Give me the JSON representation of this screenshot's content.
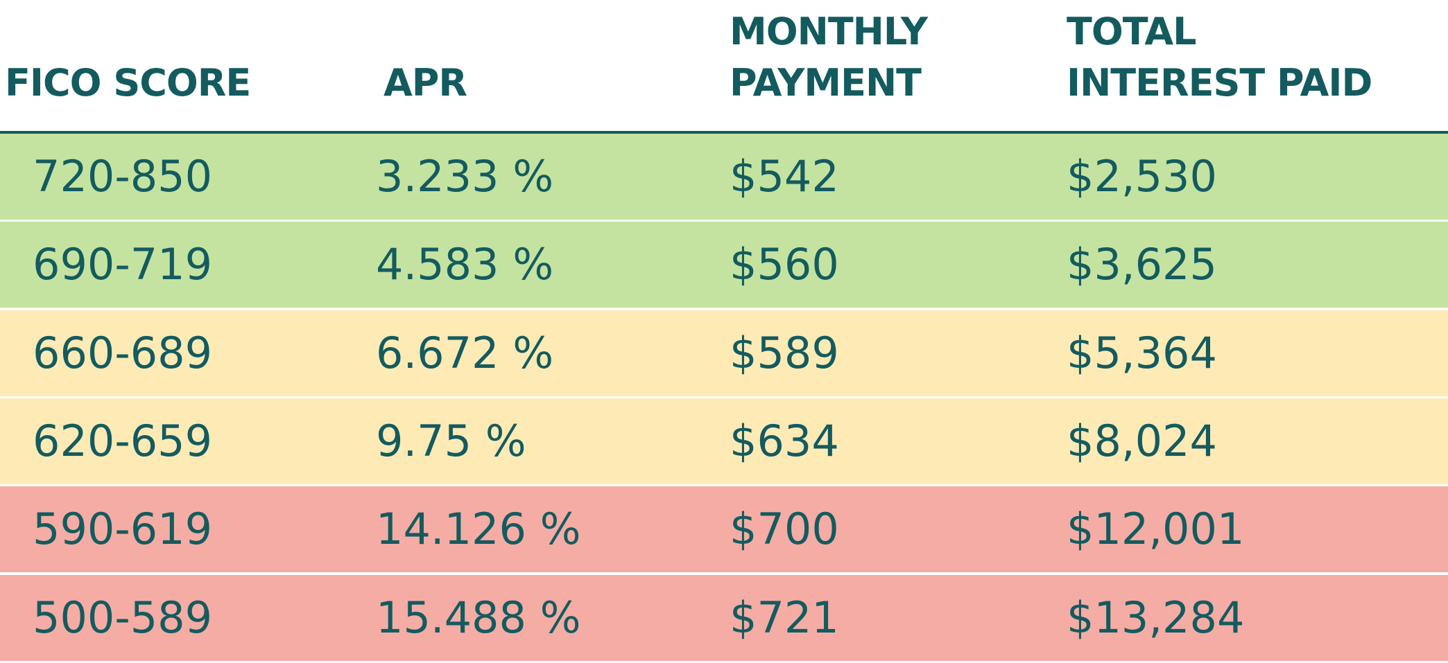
{
  "header": {
    "columns": [
      "FICO SCORE",
      "APR",
      "MONTHLY\nPAYMENT",
      "TOTAL\nINTEREST PAID"
    ]
  },
  "table": {
    "rows": [
      [
        "720-850",
        "3.233 %",
        "$542",
        "$2,530"
      ],
      [
        "690-719",
        "4.583 %",
        "$560",
        "$3,625"
      ],
      [
        "660-689",
        "6.672 %",
        "$589",
        "$5,364"
      ],
      [
        "620-659",
        "9.75 %",
        "$634",
        "$8,024"
      ],
      [
        "590-619",
        "14.126 %",
        "$700",
        "$12,001"
      ],
      [
        "500-589",
        "15.488 %",
        "$721",
        "$13,284"
      ]
    ]
  }
}
